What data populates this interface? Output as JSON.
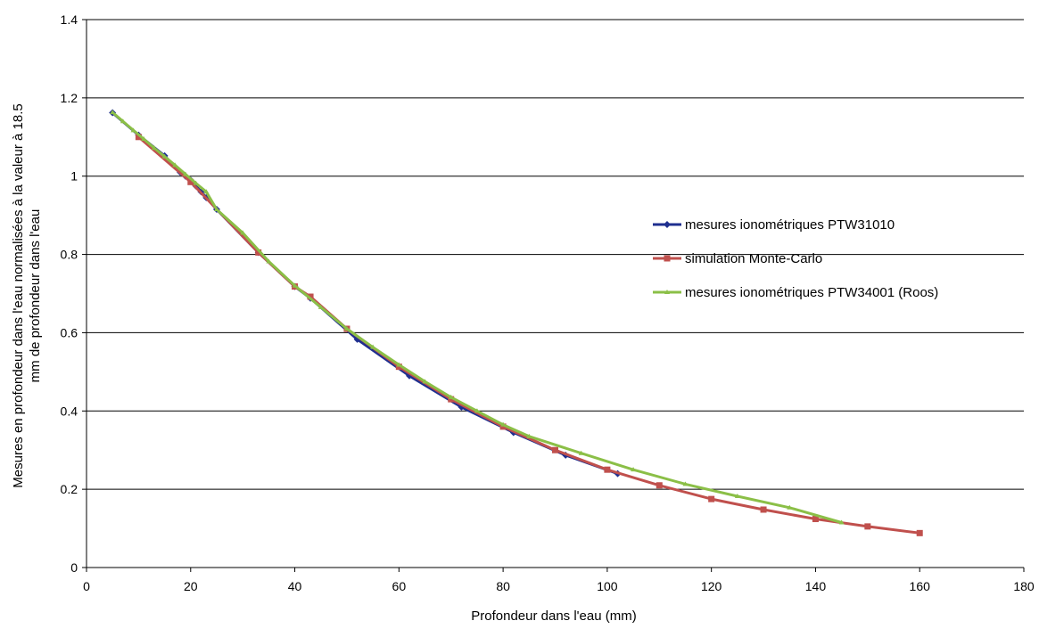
{
  "chart_data": {
    "type": "line",
    "title": "",
    "xlabel": "Profondeur dans l'eau (mm)",
    "ylabel_line1": "Mesures en profondeur dans l'eau normalisées à la valeur à 18.5",
    "ylabel_line2": "mm de profondeur dans l'eau",
    "xlim": [
      0,
      180
    ],
    "ylim": [
      0,
      1.4
    ],
    "xticks": [
      "0",
      "20",
      "40",
      "60",
      "80",
      "100",
      "120",
      "140",
      "160",
      "180"
    ],
    "yticks": [
      "0",
      "0.2",
      "0.4",
      "0.6",
      "0.8",
      "1",
      "1.2",
      "1.4"
    ],
    "grid": "horizontal",
    "legend_position": "right",
    "series": [
      {
        "name": "mesures ionométriques PTW31010",
        "color": "#1f2f8f",
        "marker": "diamond",
        "x": [
          5,
          10,
          15,
          18,
          19,
          20,
          21,
          22,
          23,
          25,
          33,
          40,
          43,
          52,
          62,
          72,
          82,
          92,
          102
        ],
        "y": [
          1.162,
          1.105,
          1.052,
          1.01,
          1.0,
          0.99,
          0.975,
          0.96,
          0.945,
          0.915,
          0.805,
          0.718,
          0.688,
          0.583,
          0.49,
          0.41,
          0.345,
          0.287,
          0.24
        ]
      },
      {
        "name": "simulation Monte-Carlo",
        "color": "#c0504d",
        "marker": "square",
        "x": [
          10,
          20,
          33,
          40,
          43,
          50,
          60,
          70,
          80,
          90,
          100,
          110,
          120,
          130,
          140,
          150,
          160
        ],
        "y": [
          1.1,
          0.985,
          0.805,
          0.718,
          0.692,
          0.61,
          0.513,
          0.43,
          0.36,
          0.3,
          0.25,
          0.21,
          0.175,
          0.148,
          0.124,
          0.105,
          0.088
        ]
      },
      {
        "name": "mesures ionométriques PTW34001 (Roos)",
        "color": "#8bbf47",
        "marker": "triangle",
        "x": [
          5,
          7,
          9,
          11,
          13,
          15,
          17,
          19,
          21,
          23,
          25,
          30,
          35,
          40,
          45,
          50,
          55,
          60,
          65,
          70,
          75,
          80,
          85,
          95,
          105,
          115,
          125,
          135,
          145
        ],
        "y": [
          1.163,
          1.14,
          1.117,
          1.095,
          1.072,
          1.05,
          1.028,
          1.005,
          0.982,
          0.96,
          0.915,
          0.855,
          0.782,
          0.72,
          0.665,
          0.61,
          0.563,
          0.518,
          0.475,
          0.435,
          0.4,
          0.365,
          0.335,
          0.292,
          0.25,
          0.213,
          0.182,
          0.153,
          0.115
        ]
      }
    ]
  }
}
